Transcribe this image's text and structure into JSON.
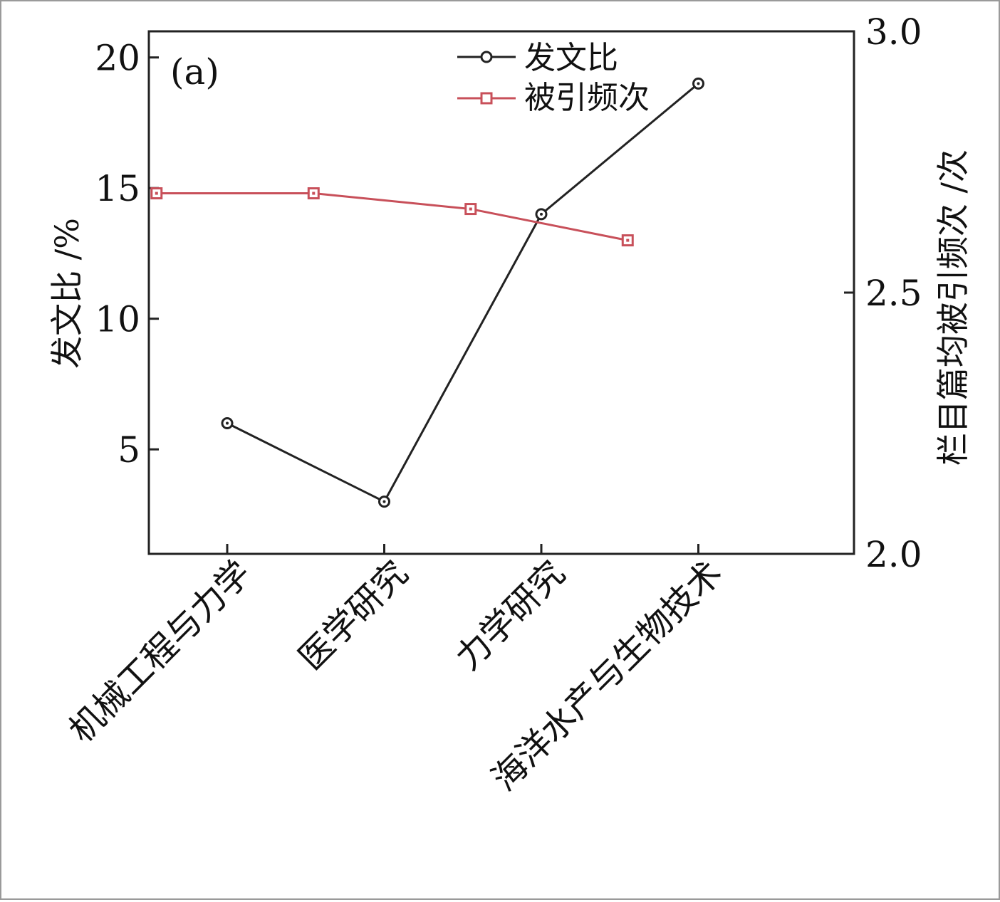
{
  "chart_data": {
    "type": "line",
    "panel_label": "(a)",
    "categories": [
      "机械工程与力学",
      "医学研究",
      "力学研究",
      "海洋水产与生物技术"
    ],
    "y_left": {
      "label": "发文比 /%",
      "range": [
        1,
        21
      ],
      "ticks": [
        5,
        10,
        15,
        20
      ]
    },
    "y_right": {
      "label": "栏目篇均被引频次 /次",
      "range": [
        2.0,
        3.0
      ],
      "ticks": [
        "2.0",
        "2.5",
        "3.0"
      ]
    },
    "series": [
      {
        "name": "发文比",
        "axis": "left",
        "color": "#222222",
        "marker": "circle",
        "values": [
          6,
          3,
          14,
          19
        ],
        "category_offset": 0
      },
      {
        "name": "被引频次",
        "axis": "right",
        "color": "#c8505a",
        "marker": "square",
        "values": [
          2.69,
          2.69,
          2.66,
          2.6
        ],
        "category_offset": -0.45
      }
    ],
    "legend": {
      "position": "top-center",
      "entries": [
        "发文比",
        "被引频次"
      ]
    },
    "grid": false
  }
}
